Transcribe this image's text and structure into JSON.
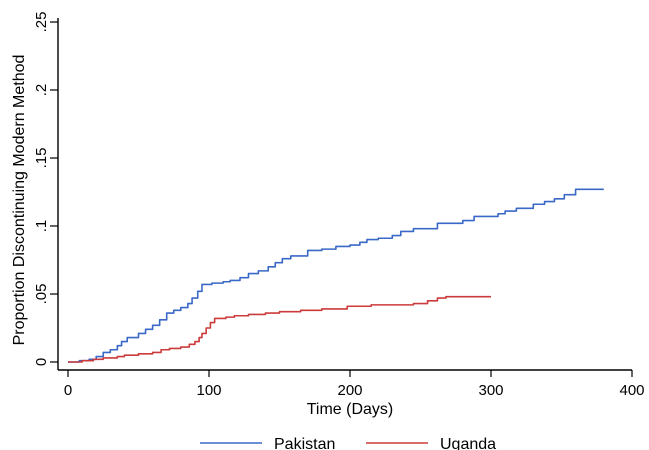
{
  "chart_data": {
    "type": "line",
    "title": "",
    "xlabel": "Time (Days)",
    "ylabel": "Proportion Discontinuing Modern Method",
    "xlim": [
      0,
      400
    ],
    "ylim": [
      0,
      0.25
    ],
    "xticks": [
      0,
      100,
      200,
      300,
      400
    ],
    "xtick_labels": [
      "0",
      "100",
      "200",
      "300",
      "400"
    ],
    "yticks": [
      0,
      0.05,
      0.1,
      0.15,
      0.2,
      0.25
    ],
    "ytick_labels": [
      "0",
      ".05",
      ".1",
      ".15",
      ".2",
      ".25"
    ],
    "grid": false,
    "legend_position": "bottom",
    "series": [
      {
        "name": "Pakistan",
        "color": "#3a68c8",
        "step": true,
        "points": [
          [
            0,
            0
          ],
          [
            8,
            0.001
          ],
          [
            15,
            0.002
          ],
          [
            20,
            0.004
          ],
          [
            25,
            0.007
          ],
          [
            30,
            0.009
          ],
          [
            35,
            0.012
          ],
          [
            38,
            0.015
          ],
          [
            42,
            0.018
          ],
          [
            50,
            0.021
          ],
          [
            55,
            0.024
          ],
          [
            60,
            0.027
          ],
          [
            65,
            0.031
          ],
          [
            70,
            0.036
          ],
          [
            75,
            0.038
          ],
          [
            80,
            0.04
          ],
          [
            85,
            0.043
          ],
          [
            88,
            0.047
          ],
          [
            92,
            0.052
          ],
          [
            95,
            0.057
          ],
          [
            102,
            0.058
          ],
          [
            110,
            0.059
          ],
          [
            115,
            0.06
          ],
          [
            122,
            0.062
          ],
          [
            128,
            0.065
          ],
          [
            135,
            0.067
          ],
          [
            142,
            0.07
          ],
          [
            147,
            0.073
          ],
          [
            152,
            0.076
          ],
          [
            158,
            0.078
          ],
          [
            170,
            0.082
          ],
          [
            180,
            0.083
          ],
          [
            190,
            0.085
          ],
          [
            200,
            0.086
          ],
          [
            207,
            0.088
          ],
          [
            212,
            0.09
          ],
          [
            220,
            0.091
          ],
          [
            230,
            0.093
          ],
          [
            236,
            0.096
          ],
          [
            245,
            0.098
          ],
          [
            262,
            0.102
          ],
          [
            280,
            0.104
          ],
          [
            288,
            0.107
          ],
          [
            305,
            0.109
          ],
          [
            310,
            0.111
          ],
          [
            318,
            0.113
          ],
          [
            330,
            0.116
          ],
          [
            338,
            0.118
          ],
          [
            345,
            0.12
          ],
          [
            352,
            0.123
          ],
          [
            360,
            0.127
          ],
          [
            380,
            0.127
          ]
        ]
      },
      {
        "name": "Uganda",
        "color": "#cc3b3b",
        "step": true,
        "points": [
          [
            0,
            0
          ],
          [
            10,
            0.001
          ],
          [
            18,
            0.002
          ],
          [
            25,
            0.003
          ],
          [
            35,
            0.004
          ],
          [
            40,
            0.005
          ],
          [
            50,
            0.006
          ],
          [
            60,
            0.007
          ],
          [
            66,
            0.009
          ],
          [
            72,
            0.01
          ],
          [
            80,
            0.011
          ],
          [
            86,
            0.013
          ],
          [
            90,
            0.015
          ],
          [
            93,
            0.018
          ],
          [
            95,
            0.021
          ],
          [
            98,
            0.025
          ],
          [
            101,
            0.029
          ],
          [
            104,
            0.032
          ],
          [
            112,
            0.033
          ],
          [
            118,
            0.034
          ],
          [
            128,
            0.035
          ],
          [
            140,
            0.036
          ],
          [
            150,
            0.037
          ],
          [
            165,
            0.038
          ],
          [
            180,
            0.039
          ],
          [
            198,
            0.041
          ],
          [
            215,
            0.042
          ],
          [
            245,
            0.043
          ],
          [
            255,
            0.045
          ],
          [
            262,
            0.047
          ],
          [
            268,
            0.048
          ],
          [
            300,
            0.048
          ]
        ]
      }
    ]
  }
}
